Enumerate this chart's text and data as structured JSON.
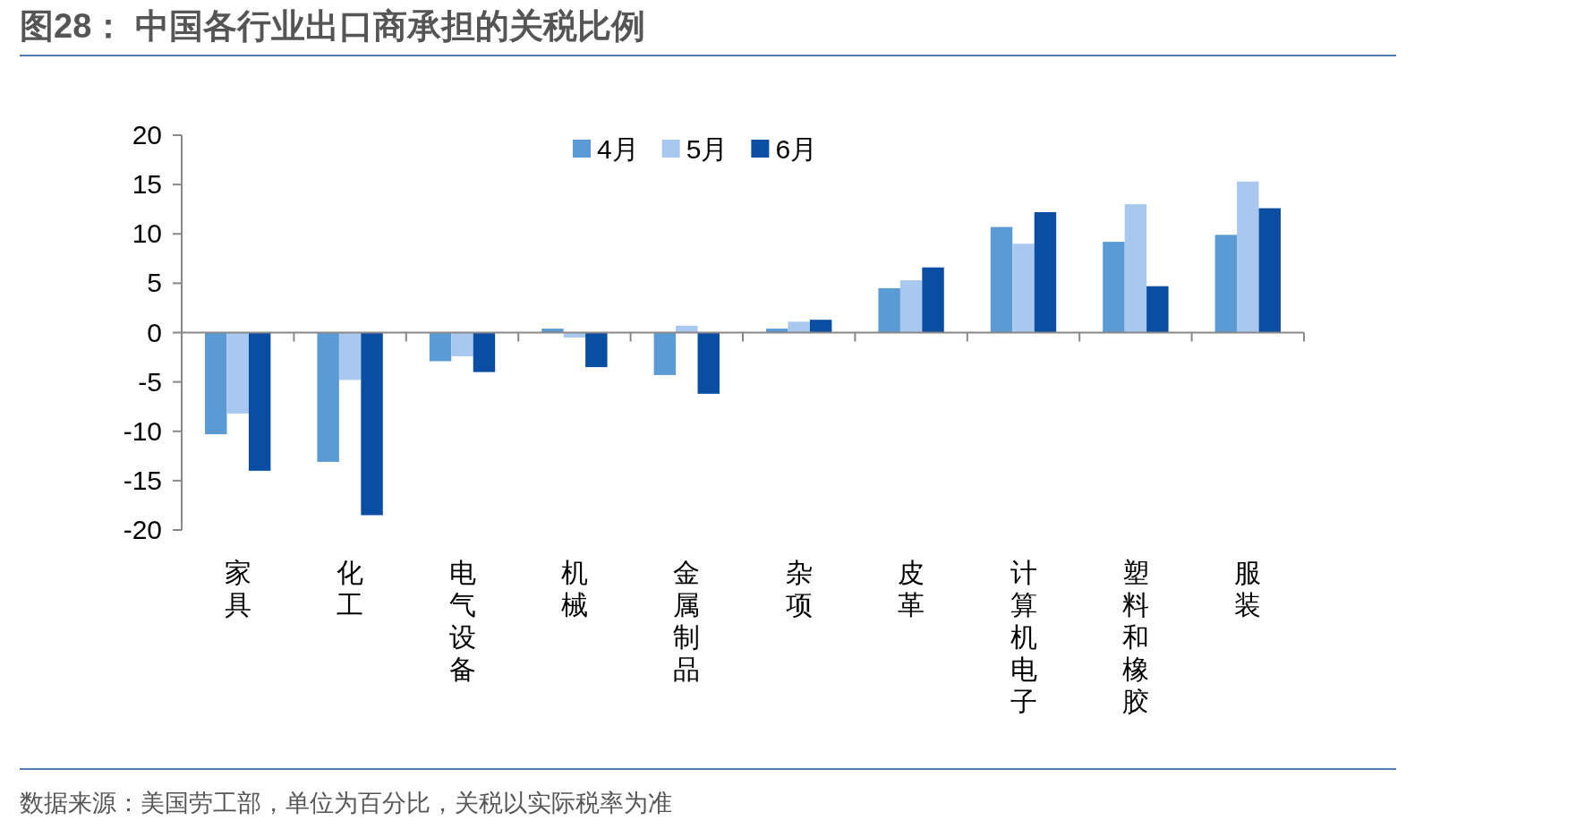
{
  "chart_data": {
    "type": "bar",
    "title": "图28：    中国各行业出口商承担的关税比例",
    "annotations": [
      "数据来源：美国劳工部，单位为百分比，关税以实际税率为准"
    ],
    "categories": [
      "家具",
      "化工",
      "电气设备",
      "机械",
      "金属制品",
      "杂项",
      "皮革",
      "计算机电子",
      "塑料和橡胶",
      "服装"
    ],
    "series": [
      {
        "name": "4月",
        "color": "#5b9bd5",
        "values": [
          -10.3,
          -13.1,
          -2.9,
          0.4,
          -4.3,
          0.4,
          4.5,
          10.7,
          9.2,
          9.9
        ]
      },
      {
        "name": "5月",
        "color": "#a9c8ef",
        "values": [
          -8.2,
          -4.8,
          -2.4,
          -0.5,
          0.7,
          1.1,
          5.3,
          9.0,
          13.0,
          15.3
        ]
      },
      {
        "name": "6月",
        "color": "#0a4ea3",
        "values": [
          -14.0,
          -18.5,
          -4.0,
          -3.5,
          -6.2,
          1.3,
          6.6,
          12.2,
          4.7,
          12.6
        ]
      }
    ],
    "ylim": [
      -20,
      20
    ],
    "yticks": [
      -20,
      -15,
      -10,
      -5,
      0,
      5,
      10,
      15,
      20
    ],
    "legend": "top"
  }
}
